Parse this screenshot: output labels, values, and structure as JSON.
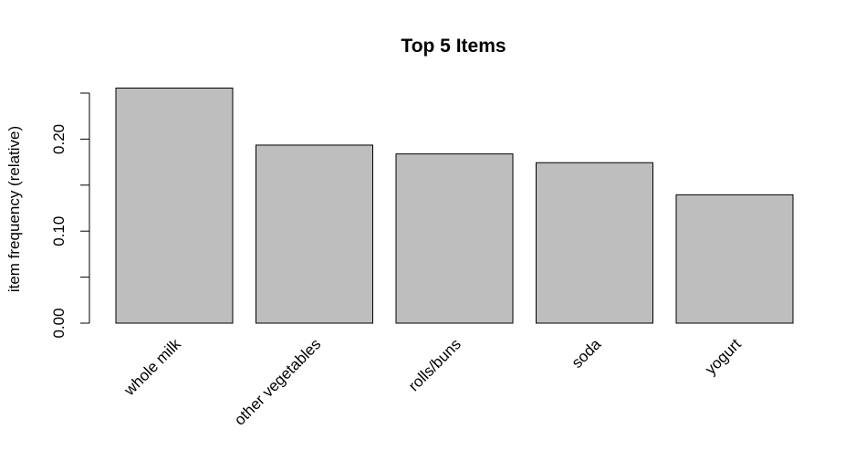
{
  "chart_data": {
    "type": "bar",
    "title": "Top 5 Items",
    "xlabel": "",
    "ylabel": "item frequency (relative)",
    "categories": [
      "whole milk",
      "other vegetables",
      "rolls/buns",
      "soda",
      "yogurt"
    ],
    "values": [
      0.2555,
      0.1935,
      0.1839,
      0.1744,
      0.1395
    ],
    "ylim": [
      0,
      0.25
    ],
    "y_ticks": [
      0,
      0.05,
      0.1,
      0.15,
      0.2,
      0.25
    ],
    "y_tick_labels": [
      "0.00",
      "",
      "0.10",
      "",
      "0.20",
      ""
    ],
    "colors": {
      "bar_fill": "#bebebe",
      "bar_stroke": "#000000",
      "axis": "#000000"
    },
    "grid": false,
    "legend": "none"
  }
}
